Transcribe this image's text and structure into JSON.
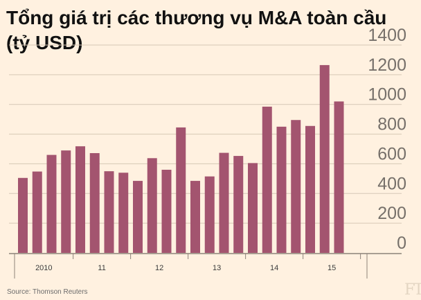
{
  "header": {
    "title_line1": "Tổng giá trị các thương vụ M&A toàn cầu",
    "title_line2": "(tỷ USD)"
  },
  "footer": {
    "source": "Source: Thomson Reuters",
    "logo_text": "FT"
  },
  "colors": {
    "background": "#fff1e0",
    "bar": "#a3546f",
    "grid": "#d6c8b5",
    "tick_text": "#76706a",
    "axis": "#8c8279"
  },
  "chart_data": {
    "type": "bar",
    "title": "Tổng giá trị các thương vụ M&A toàn cầu (tỷ USD)",
    "xlabel": "",
    "ylabel": "",
    "ylim": [
      0,
      1400
    ],
    "yticks": [
      0,
      200,
      400,
      600,
      800,
      1000,
      1200,
      1400
    ],
    "ytick_labels": [
      "0",
      "200",
      "400",
      "600",
      "800",
      "1000",
      "1200",
      "1400"
    ],
    "y_axis_side": "right",
    "grid": true,
    "x_group_labels": [
      {
        "label": "2010",
        "start": 0,
        "end": 4
      },
      {
        "label": "11",
        "start": 4,
        "end": 8
      },
      {
        "label": "12",
        "start": 8,
        "end": 12
      },
      {
        "label": "13",
        "start": 12,
        "end": 16
      },
      {
        "label": "14",
        "start": 16,
        "end": 20
      },
      {
        "label": "15",
        "start": 20,
        "end": 24
      }
    ],
    "values": [
      505,
      548,
      660,
      690,
      718,
      672,
      550,
      540,
      485,
      638,
      560,
      845,
      485,
      515,
      674,
      653,
      605,
      985,
      850,
      895,
      855,
      1265,
      1020
    ]
  }
}
